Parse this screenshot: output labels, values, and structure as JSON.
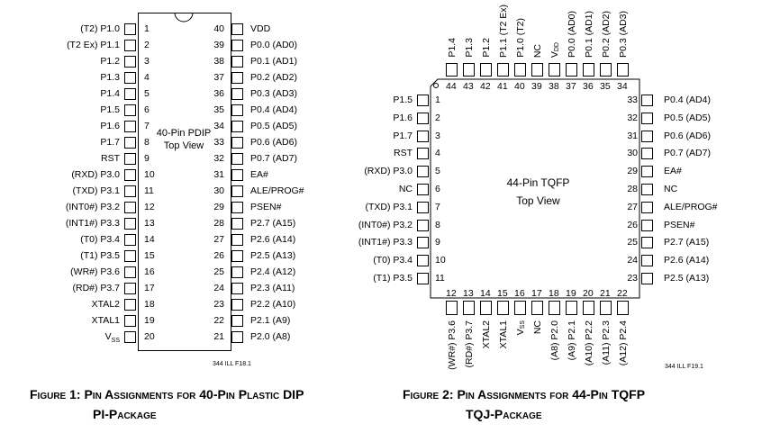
{
  "pdip": {
    "title_line1": "40-Pin PDIP",
    "title_line2": "Top View",
    "ill_code": "344 ILL F18.1",
    "caption_line1": "Figure 1:  Pin Assignments for 40-Pin Plastic DIP",
    "caption_line2": "PI-Package",
    "left_pins": [
      {
        "num": "1",
        "label": "(T2) P1.0"
      },
      {
        "num": "2",
        "label": "(T2 Ex) P1.1"
      },
      {
        "num": "3",
        "label": "P1.2"
      },
      {
        "num": "4",
        "label": "P1.3"
      },
      {
        "num": "5",
        "label": "P1.4"
      },
      {
        "num": "6",
        "label": "P1.5"
      },
      {
        "num": "7",
        "label": "P1.6"
      },
      {
        "num": "8",
        "label": "P1.7"
      },
      {
        "num": "9",
        "label": "RST"
      },
      {
        "num": "10",
        "label": "(RXD) P3.0"
      },
      {
        "num": "11",
        "label": "(TXD) P3.1"
      },
      {
        "num": "12",
        "label": "(INT0#) P3.2"
      },
      {
        "num": "13",
        "label": "(INT1#) P3.3"
      },
      {
        "num": "14",
        "label": "(T0) P3.4"
      },
      {
        "num": "15",
        "label": "(T1) P3.5"
      },
      {
        "num": "16",
        "label": "(WR#) P3.6"
      },
      {
        "num": "17",
        "label": "(RD#) P3.7"
      },
      {
        "num": "18",
        "label": "XTAL2"
      },
      {
        "num": "19",
        "label": "XTAL1"
      },
      {
        "num": "20",
        "label": "V",
        "sub": "SS"
      }
    ],
    "right_pins": [
      {
        "num": "40",
        "label": "VDD"
      },
      {
        "num": "39",
        "label": "P0.0 (AD0)"
      },
      {
        "num": "38",
        "label": "P0.1 (AD1)"
      },
      {
        "num": "37",
        "label": "P0.2 (AD2)"
      },
      {
        "num": "36",
        "label": "P0.3 (AD3)"
      },
      {
        "num": "35",
        "label": "P0.4 (AD4)"
      },
      {
        "num": "34",
        "label": "P0.5 (AD5)"
      },
      {
        "num": "33",
        "label": "P0.6 (AD6)"
      },
      {
        "num": "32",
        "label": "P0.7 (AD7)"
      },
      {
        "num": "31",
        "label": "EA#"
      },
      {
        "num": "30",
        "label": "ALE/PROG#"
      },
      {
        "num": "29",
        "label": "PSEN#"
      },
      {
        "num": "28",
        "label": "P2.7 (A15)"
      },
      {
        "num": "27",
        "label": "P2.6 (A14)"
      },
      {
        "num": "26",
        "label": "P2.5 (A13)"
      },
      {
        "num": "25",
        "label": "P2.4 (A12)"
      },
      {
        "num": "24",
        "label": "P2.3 (A11)"
      },
      {
        "num": "23",
        "label": "P2.2 (A10)"
      },
      {
        "num": "22",
        "label": "P2.1 (A9)"
      },
      {
        "num": "21",
        "label": "P2.0 (A8)"
      }
    ]
  },
  "tqfp": {
    "title_line1": "44-Pin TQFP",
    "title_line2": "Top View",
    "ill_code": "344 ILL F19.1",
    "caption_line1": "Figure 2:  Pin Assignments for 44-Pin TQFP",
    "caption_line2": "TQJ-Package",
    "left_pins": [
      {
        "num": "1",
        "label": "P1.5"
      },
      {
        "num": "2",
        "label": "P1.6"
      },
      {
        "num": "3",
        "label": "P1.7"
      },
      {
        "num": "4",
        "label": "RST"
      },
      {
        "num": "5",
        "label": "(RXD) P3.0"
      },
      {
        "num": "6",
        "label": "NC"
      },
      {
        "num": "7",
        "label": "(TXD) P3.1"
      },
      {
        "num": "8",
        "label": "(INT0#) P3.2"
      },
      {
        "num": "9",
        "label": "(INT1#) P3.3"
      },
      {
        "num": "10",
        "label": "(T0) P3.4"
      },
      {
        "num": "11",
        "label": "(T1) P3.5"
      }
    ],
    "right_pins": [
      {
        "num": "33",
        "label": "P0.4 (AD4)"
      },
      {
        "num": "32",
        "label": "P0.5 (AD5)"
      },
      {
        "num": "31",
        "label": "P0.6 (AD6)"
      },
      {
        "num": "30",
        "label": "P0.7 (AD7)"
      },
      {
        "num": "29",
        "label": "EA#"
      },
      {
        "num": "28",
        "label": "NC"
      },
      {
        "num": "27",
        "label": "ALE/PROG#"
      },
      {
        "num": "26",
        "label": "PSEN#"
      },
      {
        "num": "25",
        "label": "P2.7 (A15)"
      },
      {
        "num": "24",
        "label": "P2.6 (A14)"
      },
      {
        "num": "23",
        "label": "P2.5 (A13)"
      }
    ],
    "top_pins": [
      {
        "num": "44",
        "label": "P1.4"
      },
      {
        "num": "43",
        "label": "P1.3"
      },
      {
        "num": "42",
        "label": "P1.2"
      },
      {
        "num": "41",
        "label": "P1.1 (T2 Ex)"
      },
      {
        "num": "40",
        "label": "P1.0 (T2)"
      },
      {
        "num": "39",
        "label": "NC"
      },
      {
        "num": "38",
        "label": "V",
        "sub": "DD"
      },
      {
        "num": "37",
        "label": "P0.0 (AD0)"
      },
      {
        "num": "36",
        "label": "P0.1 (AD1)"
      },
      {
        "num": "35",
        "label": "P0.2 (AD2)"
      },
      {
        "num": "34",
        "label": "P0.3 (AD3)"
      }
    ],
    "bottom_pins": [
      {
        "num": "12",
        "label": "(WR#) P3.6"
      },
      {
        "num": "13",
        "label": "(RD#) P3.7"
      },
      {
        "num": "14",
        "label": "XTAL2"
      },
      {
        "num": "15",
        "label": "XTAL1"
      },
      {
        "num": "16",
        "label": "V",
        "sub": "SS"
      },
      {
        "num": "17",
        "label": "NC"
      },
      {
        "num": "18",
        "label": "(A8) P2.0"
      },
      {
        "num": "19",
        "label": "(A9) P2.1"
      },
      {
        "num": "20",
        "label": "(A10) P2.2"
      },
      {
        "num": "21",
        "label": "(A11) P2.3"
      },
      {
        "num": "22",
        "label": "(A12) P2.4"
      }
    ]
  }
}
